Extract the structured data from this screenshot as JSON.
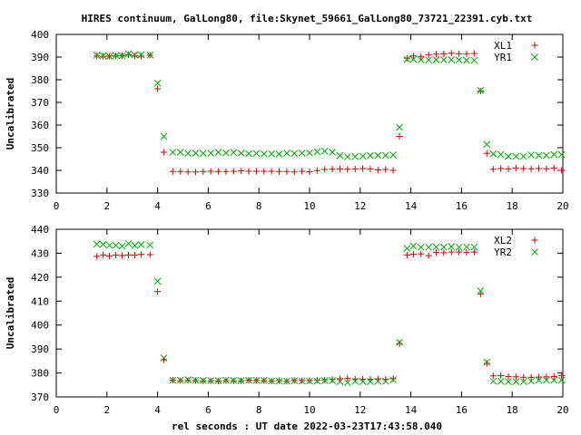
{
  "title": "HIRES continuum, GalLong80, file:Skynet_59661_GalLong80_73721_22391.cyb.txt",
  "xlabel": "rel seconds : UT date 2022-03-23T17:43:58.040",
  "colors": {
    "red": "#cc0000",
    "green": "#00aa00",
    "frame": "#000000"
  },
  "chart_data": [
    {
      "type": "scatter",
      "ylabel": "Uncalibrated",
      "xlim": [
        0,
        20
      ],
      "ylim": [
        330,
        400
      ],
      "xticks": [
        0,
        2,
        4,
        6,
        8,
        10,
        12,
        14,
        16,
        18,
        20
      ],
      "yticks": [
        330,
        340,
        350,
        360,
        370,
        380,
        390,
        400
      ],
      "grid": false,
      "legend_position": "top-right",
      "series": [
        {
          "name": "XL1",
          "marker": "plus",
          "color": "#cc0000",
          "points": [
            [
              1.6,
              390.5
            ],
            [
              1.85,
              390.3
            ],
            [
              2.1,
              390.4
            ],
            [
              2.35,
              390.5
            ],
            [
              2.6,
              390.6
            ],
            [
              2.85,
              391.0
            ],
            [
              3.1,
              390.5
            ],
            [
              3.35,
              390.4
            ],
            [
              3.7,
              390.8
            ],
            [
              4.0,
              376.0
            ],
            [
              4.25,
              348.0
            ],
            [
              4.6,
              339.5
            ],
            [
              4.9,
              339.5
            ],
            [
              5.2,
              339.3
            ],
            [
              5.5,
              339.3
            ],
            [
              5.8,
              339.5
            ],
            [
              6.1,
              339.6
            ],
            [
              6.4,
              339.5
            ],
            [
              6.7,
              339.5
            ],
            [
              7.0,
              339.6
            ],
            [
              7.3,
              339.8
            ],
            [
              7.6,
              339.6
            ],
            [
              7.9,
              339.6
            ],
            [
              8.2,
              339.6
            ],
            [
              8.5,
              339.6
            ],
            [
              8.8,
              339.5
            ],
            [
              9.1,
              339.5
            ],
            [
              9.4,
              339.3
            ],
            [
              9.7,
              339.6
            ],
            [
              10.0,
              339.4
            ],
            [
              10.3,
              339.9
            ],
            [
              10.6,
              340.4
            ],
            [
              10.9,
              340.5
            ],
            [
              11.2,
              340.6
            ],
            [
              11.5,
              340.5
            ],
            [
              11.8,
              340.6
            ],
            [
              12.1,
              340.8
            ],
            [
              12.4,
              340.6
            ],
            [
              12.7,
              340.2
            ],
            [
              13.0,
              340.4
            ],
            [
              13.3,
              340.0
            ],
            [
              13.55,
              355.0
            ],
            [
              13.85,
              389.5
            ],
            [
              14.1,
              390.5
            ],
            [
              14.4,
              390.3
            ],
            [
              14.7,
              391.0
            ],
            [
              15.0,
              391.3
            ],
            [
              15.3,
              391.4
            ],
            [
              15.6,
              391.7
            ],
            [
              15.9,
              391.5
            ],
            [
              16.2,
              391.5
            ],
            [
              16.5,
              391.6
            ],
            [
              16.75,
              375.0
            ],
            [
              17.0,
              347.5
            ],
            [
              17.25,
              340.5
            ],
            [
              17.55,
              340.8
            ],
            [
              17.85,
              340.6
            ],
            [
              18.15,
              341.0
            ],
            [
              18.45,
              340.8
            ],
            [
              18.75,
              340.7
            ],
            [
              19.05,
              340.8
            ],
            [
              19.35,
              340.7
            ],
            [
              19.65,
              341.0
            ],
            [
              19.95,
              340.0
            ]
          ]
        },
        {
          "name": "YR1",
          "marker": "cross",
          "color": "#00aa00",
          "points": [
            [
              1.6,
              390.8
            ],
            [
              1.85,
              390.6
            ],
            [
              2.1,
              390.3
            ],
            [
              2.35,
              390.7
            ],
            [
              2.6,
              390.6
            ],
            [
              2.85,
              391.5
            ],
            [
              3.1,
              390.9
            ],
            [
              3.35,
              391.0
            ],
            [
              3.7,
              390.9
            ],
            [
              4.0,
              378.5
            ],
            [
              4.25,
              355.0
            ],
            [
              4.6,
              348.0
            ],
            [
              4.9,
              348.0
            ],
            [
              5.2,
              347.5
            ],
            [
              5.5,
              347.6
            ],
            [
              5.8,
              347.5
            ],
            [
              6.1,
              347.6
            ],
            [
              6.4,
              348.0
            ],
            [
              6.7,
              347.7
            ],
            [
              7.0,
              347.9
            ],
            [
              7.3,
              347.6
            ],
            [
              7.6,
              347.4
            ],
            [
              7.9,
              347.5
            ],
            [
              8.2,
              347.3
            ],
            [
              8.5,
              347.3
            ],
            [
              8.8,
              347.2
            ],
            [
              9.1,
              347.6
            ],
            [
              9.4,
              347.5
            ],
            [
              9.7,
              347.6
            ],
            [
              10.0,
              347.7
            ],
            [
              10.3,
              348.2
            ],
            [
              10.6,
              348.5
            ],
            [
              10.9,
              348.0
            ],
            [
              11.2,
              346.5
            ],
            [
              11.5,
              346.0
            ],
            [
              11.8,
              346.1
            ],
            [
              12.1,
              346.3
            ],
            [
              12.4,
              346.5
            ],
            [
              12.7,
              346.6
            ],
            [
              13.0,
              346.6
            ],
            [
              13.3,
              346.8
            ],
            [
              13.55,
              359.0
            ],
            [
              13.85,
              389.0
            ],
            [
              14.1,
              389.0
            ],
            [
              14.4,
              388.8
            ],
            [
              14.7,
              388.7
            ],
            [
              15.0,
              388.8
            ],
            [
              15.3,
              388.8
            ],
            [
              15.6,
              388.8
            ],
            [
              15.9,
              388.7
            ],
            [
              16.2,
              388.6
            ],
            [
              16.5,
              388.6
            ],
            [
              16.75,
              375.3
            ],
            [
              17.0,
              351.5
            ],
            [
              17.25,
              347.3
            ],
            [
              17.55,
              347.0
            ],
            [
              17.85,
              346.2
            ],
            [
              18.15,
              346.2
            ],
            [
              18.45,
              346.2
            ],
            [
              18.75,
              346.8
            ],
            [
              19.05,
              346.6
            ],
            [
              19.35,
              346.6
            ],
            [
              19.65,
              347.0
            ],
            [
              19.95,
              347.0
            ]
          ]
        }
      ]
    },
    {
      "type": "scatter",
      "ylabel": "Uncalibrated",
      "xlim": [
        0,
        20
      ],
      "ylim": [
        370,
        440
      ],
      "xticks": [
        0,
        2,
        4,
        6,
        8,
        10,
        12,
        14,
        16,
        18,
        20
      ],
      "yticks": [
        370,
        380,
        390,
        400,
        410,
        420,
        430,
        440
      ],
      "grid": false,
      "legend_position": "top-right",
      "series": [
        {
          "name": "XL2",
          "marker": "plus",
          "color": "#cc0000",
          "points": [
            [
              1.6,
              428.7
            ],
            [
              1.85,
              429.3
            ],
            [
              2.1,
              428.8
            ],
            [
              2.35,
              429.2
            ],
            [
              2.6,
              429.0
            ],
            [
              2.85,
              429.3
            ],
            [
              3.1,
              429.2
            ],
            [
              3.35,
              429.5
            ],
            [
              3.7,
              429.4
            ],
            [
              4.0,
              414.0
            ],
            [
              4.25,
              385.5
            ],
            [
              4.6,
              377.0
            ],
            [
              4.9,
              376.8
            ],
            [
              5.2,
              376.9
            ],
            [
              5.5,
              376.8
            ],
            [
              5.8,
              376.6
            ],
            [
              6.1,
              376.7
            ],
            [
              6.4,
              376.6
            ],
            [
              6.7,
              376.8
            ],
            [
              7.0,
              376.7
            ],
            [
              7.3,
              376.7
            ],
            [
              7.6,
              377.0
            ],
            [
              7.9,
              376.9
            ],
            [
              8.2,
              376.8
            ],
            [
              8.5,
              376.7
            ],
            [
              8.8,
              376.8
            ],
            [
              9.1,
              376.5
            ],
            [
              9.4,
              376.9
            ],
            [
              9.7,
              376.8
            ],
            [
              10.0,
              376.8
            ],
            [
              10.3,
              377.0
            ],
            [
              10.6,
              377.1
            ],
            [
              10.9,
              377.3
            ],
            [
              11.2,
              377.6
            ],
            [
              11.5,
              377.8
            ],
            [
              11.8,
              377.5
            ],
            [
              12.1,
              377.4
            ],
            [
              12.4,
              377.4
            ],
            [
              12.7,
              377.5
            ],
            [
              13.0,
              377.3
            ],
            [
              13.3,
              377.6
            ],
            [
              13.55,
              392.3
            ],
            [
              13.85,
              429.2
            ],
            [
              14.1,
              429.6
            ],
            [
              14.4,
              429.7
            ],
            [
              14.7,
              429.0
            ],
            [
              15.0,
              430.3
            ],
            [
              15.3,
              430.2
            ],
            [
              15.6,
              430.5
            ],
            [
              15.9,
              430.5
            ],
            [
              16.2,
              430.3
            ],
            [
              16.5,
              430.5
            ],
            [
              16.75,
              413.0
            ],
            [
              17.0,
              384.0
            ],
            [
              17.25,
              378.8
            ],
            [
              17.55,
              378.9
            ],
            [
              17.85,
              378.5
            ],
            [
              18.15,
              378.4
            ],
            [
              18.45,
              378.2
            ],
            [
              18.75,
              378.2
            ],
            [
              19.05,
              378.3
            ],
            [
              19.35,
              378.4
            ],
            [
              19.65,
              378.5
            ],
            [
              19.95,
              378.9
            ]
          ]
        },
        {
          "name": "YR2",
          "marker": "cross",
          "color": "#00aa00",
          "points": [
            [
              1.6,
              433.8
            ],
            [
              1.85,
              433.7
            ],
            [
              2.1,
              433.3
            ],
            [
              2.35,
              433.3
            ],
            [
              2.6,
              433.0
            ],
            [
              2.85,
              434.0
            ],
            [
              3.1,
              433.2
            ],
            [
              3.35,
              433.6
            ],
            [
              3.7,
              433.4
            ],
            [
              4.0,
              418.3
            ],
            [
              4.25,
              386.3
            ],
            [
              4.6,
              377.0
            ],
            [
              4.9,
              377.0
            ],
            [
              5.2,
              377.2
            ],
            [
              5.5,
              377.0
            ],
            [
              5.8,
              376.9
            ],
            [
              6.1,
              376.8
            ],
            [
              6.4,
              376.8
            ],
            [
              6.7,
              377.0
            ],
            [
              7.0,
              376.9
            ],
            [
              7.3,
              376.8
            ],
            [
              7.6,
              377.0
            ],
            [
              7.9,
              376.9
            ],
            [
              8.2,
              376.9
            ],
            [
              8.5,
              376.6
            ],
            [
              8.8,
              376.6
            ],
            [
              9.1,
              376.6
            ],
            [
              9.4,
              376.8
            ],
            [
              9.7,
              376.6
            ],
            [
              10.0,
              376.6
            ],
            [
              10.3,
              376.6
            ],
            [
              10.6,
              376.8
            ],
            [
              10.9,
              376.8
            ],
            [
              11.2,
              376.4
            ],
            [
              11.5,
              376.0
            ],
            [
              11.8,
              376.5
            ],
            [
              12.1,
              376.4
            ],
            [
              12.4,
              376.4
            ],
            [
              12.7,
              376.5
            ],
            [
              13.0,
              376.5
            ],
            [
              13.3,
              377.2
            ],
            [
              13.55,
              392.8
            ],
            [
              13.85,
              432.0
            ],
            [
              14.1,
              433.0
            ],
            [
              14.4,
              432.5
            ],
            [
              14.7,
              432.5
            ],
            [
              15.0,
              432.6
            ],
            [
              15.3,
              432.6
            ],
            [
              15.6,
              432.8
            ],
            [
              15.9,
              432.5
            ],
            [
              16.2,
              432.6
            ],
            [
              16.5,
              432.6
            ],
            [
              16.75,
              414.3
            ],
            [
              17.0,
              384.5
            ],
            [
              17.25,
              376.6
            ],
            [
              17.55,
              376.5
            ],
            [
              17.85,
              376.4
            ],
            [
              18.15,
              376.4
            ],
            [
              18.45,
              376.4
            ],
            [
              18.75,
              376.6
            ],
            [
              19.05,
              377.0
            ],
            [
              19.35,
              377.0
            ],
            [
              19.65,
              377.0
            ],
            [
              19.95,
              377.0
            ]
          ]
        }
      ]
    }
  ]
}
